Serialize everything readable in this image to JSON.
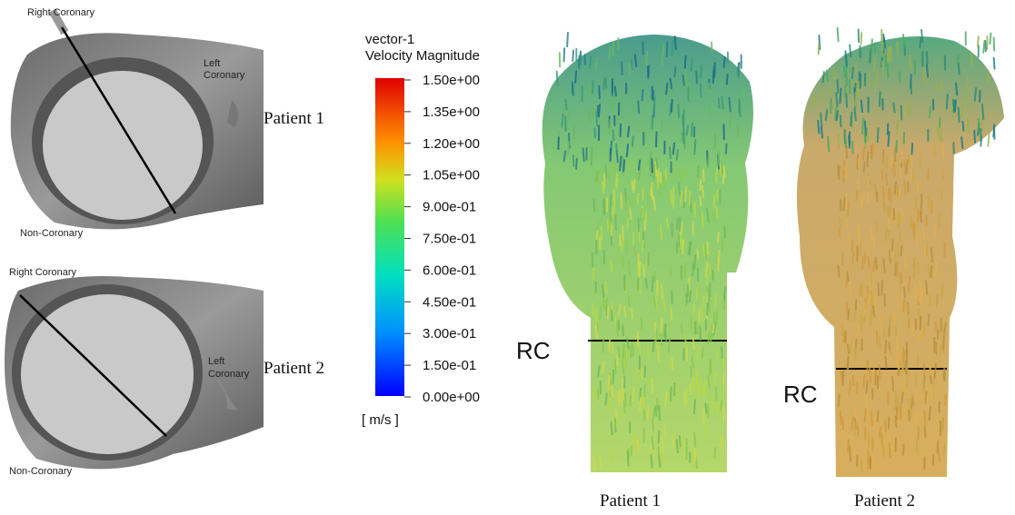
{
  "left_panel": {
    "views": [
      {
        "right_coronary": "Right Coronary",
        "left_coronary": [
          "Left",
          "Coronary"
        ],
        "non_coronary": "Non-Coronary",
        "patient": "Patient 1"
      },
      {
        "right_coronary": "Right Coronary",
        "left_coronary": [
          "Left",
          "Coronary"
        ],
        "non_coronary": "Non-Coronary",
        "patient": "Patient 2"
      }
    ]
  },
  "legend": {
    "title": [
      "vector-1",
      "Velocity Magnitude"
    ],
    "ticks": [
      "1.50e+00",
      "1.35e+00",
      "1.20e+00",
      "1.05e+00",
      "9.00e-01",
      "7.50e-01",
      "6.00e-01",
      "4.50e-01",
      "3.00e-01",
      "1.50e-01",
      "0.00e+00"
    ],
    "unit": "[ m/s ]"
  },
  "right_panel": {
    "plots": [
      {
        "marker": "RC",
        "caption": "Patient 1"
      },
      {
        "marker": "RC",
        "caption": "Patient 2"
      }
    ]
  }
}
